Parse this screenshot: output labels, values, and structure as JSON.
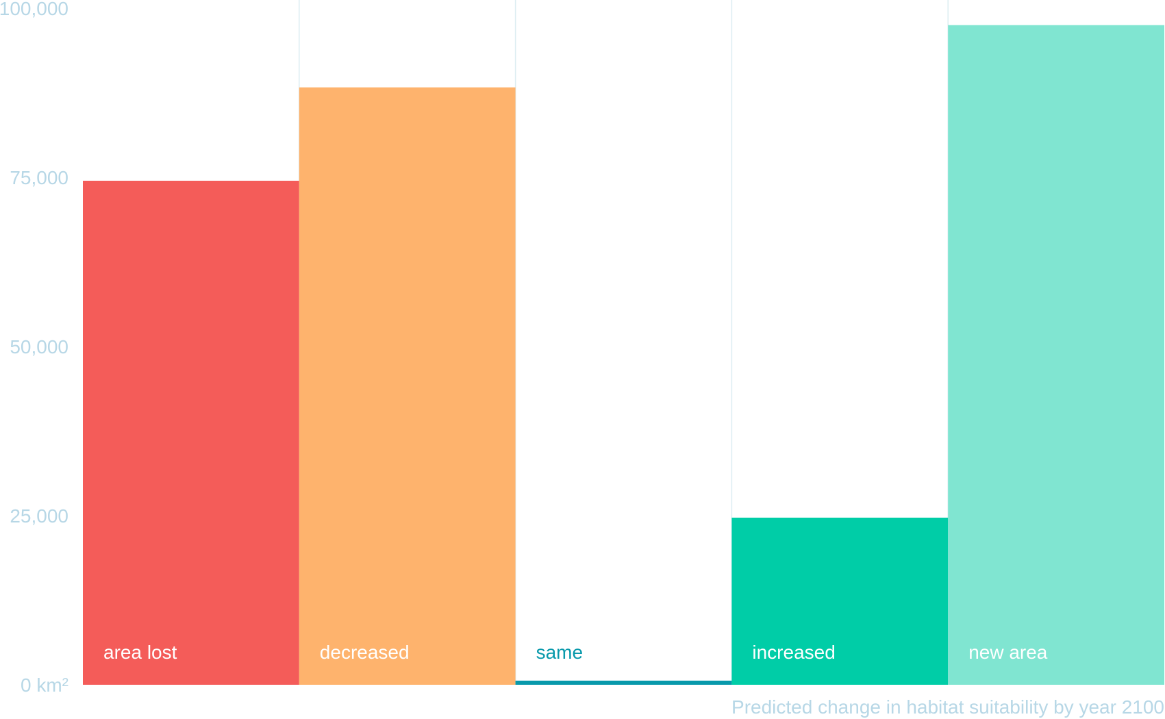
{
  "chart_data": {
    "type": "bar",
    "categories": [
      "area lost",
      "decreased",
      "same",
      "increased",
      "new area"
    ],
    "values": [
      74500,
      88300,
      300,
      24700,
      97500
    ],
    "colors": [
      "#f45c59",
      "#feb36d",
      "#0899ab",
      "#00cda7",
      "#80e5d1"
    ],
    "label_colors": [
      "#ffffff",
      "#ffffff",
      "#0899ab",
      "#ffffff",
      "#ffffff"
    ],
    "ylim": [
      0,
      100000
    ],
    "yticks": [
      0,
      25000,
      50000,
      75000,
      100000
    ],
    "ytick_labels": [
      "0 km²",
      "25,000",
      "50,000",
      "75,000",
      "100,000"
    ],
    "xlabel": "Predicted change in habitat suitability by year 2100",
    "grid": "vertical separators between bars",
    "grid_color": "#dcedf2",
    "tick_color": "#b7d7e6"
  }
}
